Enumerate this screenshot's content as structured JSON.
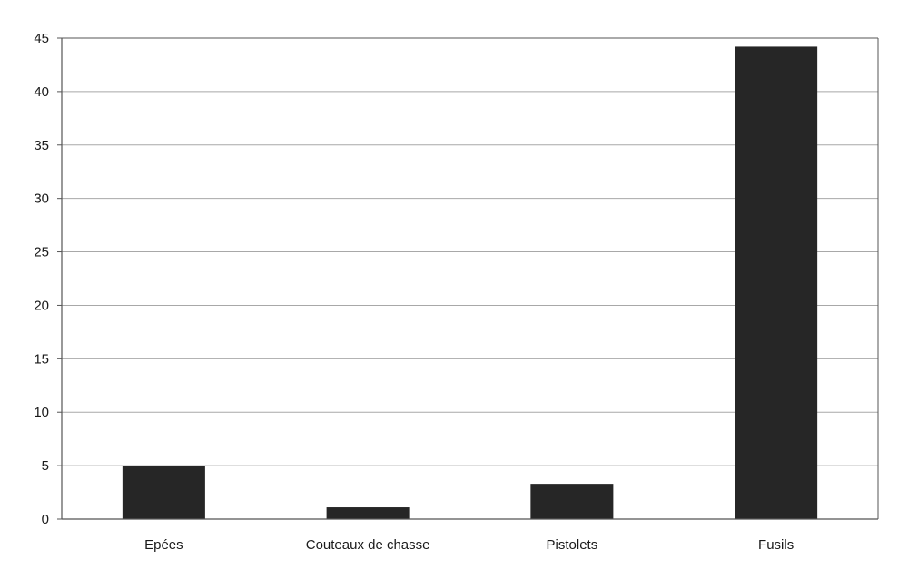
{
  "chart_data": {
    "type": "bar",
    "categories": [
      "Epées",
      "Couteaux de chasse",
      "Pistolets",
      "Fusils"
    ],
    "values": [
      5,
      1.1,
      3.3,
      44.2
    ],
    "title": "",
    "xlabel": "",
    "ylabel": "",
    "ylim": [
      0,
      45
    ],
    "yticks": [
      0,
      5,
      10,
      15,
      20,
      25,
      30,
      35,
      40,
      45
    ],
    "grid": true,
    "legend": "none",
    "colors": {
      "bar": "#262626",
      "grid": "#a8a8a8",
      "axis": "#555555",
      "text": "#1a1a1a"
    }
  }
}
